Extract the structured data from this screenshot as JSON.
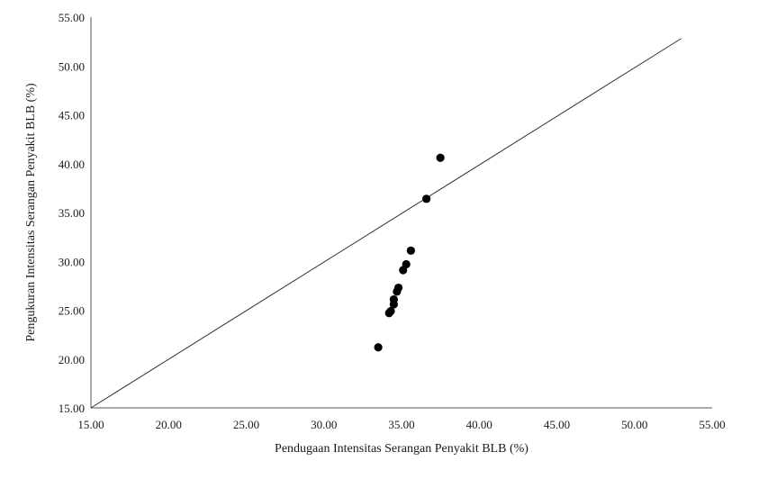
{
  "chart_data": {
    "type": "scatter",
    "title": "",
    "xlabel": "Pendugaan Intensitas Serangan Penyakit BLB  (%)",
    "ylabel": "Pengukuran Intensitas Serangan Penyakit BLB  (%)",
    "xlim": [
      15,
      55
    ],
    "ylim": [
      15,
      55
    ],
    "xticks": [
      "15.00",
      "20.00",
      "25.00",
      "30.00",
      "35.00",
      "40.00",
      "45.00",
      "50.00",
      "55.00"
    ],
    "yticks": [
      "15.00",
      "20.00",
      "25.00",
      "30.00",
      "35.00",
      "40.00",
      "45.00",
      "50.00",
      "55.00"
    ],
    "grid": false,
    "legend": "none",
    "points": [
      {
        "x": 33.5,
        "y": 21.2
      },
      {
        "x": 34.2,
        "y": 24.7
      },
      {
        "x": 34.3,
        "y": 24.9
      },
      {
        "x": 34.5,
        "y": 25.6
      },
      {
        "x": 34.5,
        "y": 26.1
      },
      {
        "x": 34.7,
        "y": 26.9
      },
      {
        "x": 34.8,
        "y": 27.3
      },
      {
        "x": 35.1,
        "y": 29.1
      },
      {
        "x": 35.3,
        "y": 29.7
      },
      {
        "x": 35.6,
        "y": 31.1
      },
      {
        "x": 36.6,
        "y": 36.4
      },
      {
        "x": 37.5,
        "y": 40.6
      }
    ],
    "reference_line": {
      "x": [
        15,
        53
      ],
      "y": [
        15,
        52.8
      ]
    },
    "colors": {
      "marker": "#000000",
      "line": "#333333",
      "axis": "#555555"
    }
  }
}
